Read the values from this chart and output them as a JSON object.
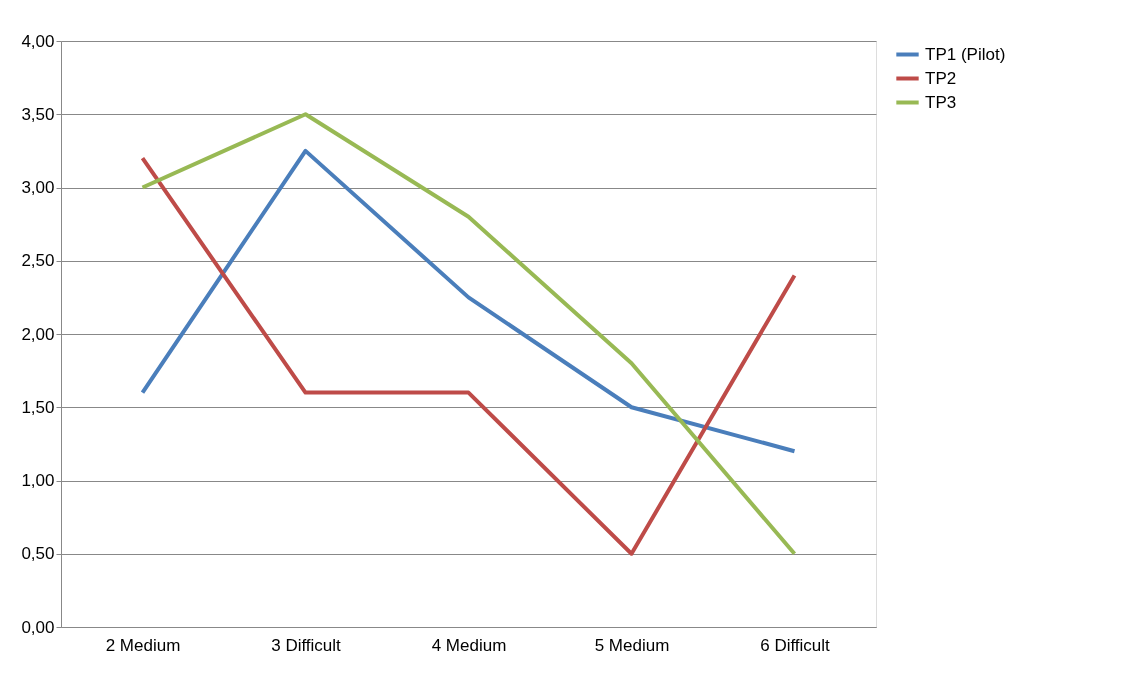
{
  "chart_data": {
    "type": "line",
    "categories": [
      "2 Medium",
      "3 Difficult",
      "4 Medium",
      "5 Medium",
      "6 Difficult"
    ],
    "series": [
      {
        "name": "TP1 (Pilot)",
        "color": "#4a7ebb",
        "values": [
          1.6,
          3.25,
          2.25,
          1.5,
          1.2
        ]
      },
      {
        "name": "TP2",
        "color": "#be4b48",
        "values": [
          3.2,
          1.6,
          1.6,
          0.5,
          2.4
        ]
      },
      {
        "name": "TP3",
        "color": "#98b954",
        "values": [
          3.0,
          3.5,
          2.8,
          1.8,
          0.5
        ]
      }
    ],
    "ylim": [
      0,
      4
    ],
    "yticks": [
      {
        "value": 0,
        "label": "0,00"
      },
      {
        "value": 0.5,
        "label": "0,50"
      },
      {
        "value": 1,
        "label": "1,00"
      },
      {
        "value": 1.5,
        "label": "1,50"
      },
      {
        "value": 2,
        "label": "2,00"
      },
      {
        "value": 2.5,
        "label": "2,50"
      },
      {
        "value": 3,
        "label": "3,00"
      },
      {
        "value": 3.5,
        "label": "3,50"
      },
      {
        "value": 4,
        "label": "4,00"
      }
    ],
    "grid": "y",
    "legend": "right",
    "marker": "none",
    "line_style": "solid"
  }
}
